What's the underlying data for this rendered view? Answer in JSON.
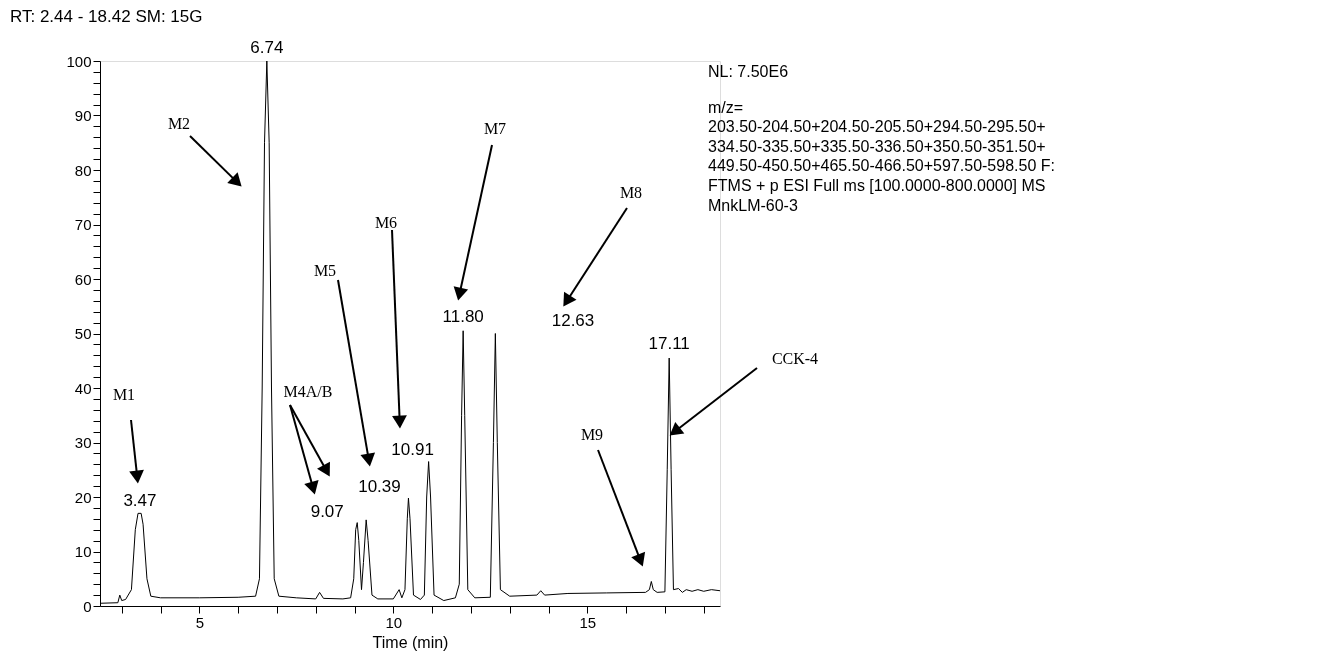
{
  "chart_data": {
    "type": "line",
    "title": "RT: 2.44 - 18.42   SM: 15G",
    "xlabel": "Time (min)",
    "xlim": [
      2.44,
      18.42
    ],
    "ylim": [
      0,
      100
    ],
    "xticks": [
      {
        "value": 3,
        "label": null
      },
      {
        "value": 4,
        "label": null
      },
      5,
      {
        "value": 6,
        "label": null
      },
      {
        "value": 7,
        "label": null
      },
      {
        "value": 8,
        "label": null
      },
      {
        "value": 9,
        "label": null
      },
      10,
      {
        "value": 11,
        "label": null
      },
      {
        "value": 12,
        "label": null
      },
      {
        "value": 13,
        "label": null
      },
      {
        "value": 14,
        "label": null
      },
      15,
      {
        "value": 16,
        "label": null
      },
      {
        "value": 17,
        "label": null
      },
      {
        "value": 18,
        "label": null
      }
    ],
    "yticks": [
      0,
      {
        "value": 2,
        "label": null
      },
      {
        "value": 4,
        "label": null
      },
      {
        "value": 6,
        "label": null
      },
      {
        "value": 8,
        "label": null
      },
      10,
      {
        "value": 12,
        "label": null
      },
      {
        "value": 14,
        "label": null
      },
      {
        "value": 16,
        "label": null
      },
      {
        "value": 18,
        "label": null
      },
      20,
      {
        "value": 22,
        "label": null
      },
      {
        "value": 24,
        "label": null
      },
      {
        "value": 26,
        "label": null
      },
      {
        "value": 28,
        "label": null
      },
      30,
      {
        "value": 32,
        "label": null
      },
      {
        "value": 34,
        "label": null
      },
      {
        "value": 36,
        "label": null
      },
      {
        "value": 38,
        "label": null
      },
      40,
      {
        "value": 42,
        "label": null
      },
      {
        "value": 44,
        "label": null
      },
      {
        "value": 46,
        "label": null
      },
      {
        "value": 48,
        "label": null
      },
      50,
      {
        "value": 52,
        "label": null
      },
      {
        "value": 54,
        "label": null
      },
      {
        "value": 56,
        "label": null
      },
      {
        "value": 58,
        "label": null
      },
      60,
      {
        "value": 62,
        "label": null
      },
      {
        "value": 64,
        "label": null
      },
      {
        "value": 66,
        "label": null
      },
      {
        "value": 68,
        "label": null
      },
      70,
      {
        "value": 72,
        "label": null
      },
      {
        "value": 74,
        "label": null
      },
      {
        "value": 76,
        "label": null
      },
      {
        "value": 78,
        "label": null
      },
      80,
      {
        "value": 82,
        "label": null
      },
      {
        "value": 84,
        "label": null
      },
      {
        "value": 86,
        "label": null
      },
      {
        "value": 88,
        "label": null
      },
      90,
      {
        "value": 92,
        "label": null
      },
      {
        "value": 94,
        "label": null
      },
      {
        "value": 96,
        "label": null
      },
      {
        "value": 98,
        "label": null
      },
      100
    ],
    "grid": false,
    "marker": "none",
    "line_style": "solid",
    "series": [
      {
        "color": "#000000",
        "x": [
          2.44,
          2.9,
          2.95,
          3.0,
          3.1,
          3.25,
          3.35,
          3.42,
          3.5,
          3.55,
          3.65,
          3.75,
          4.0,
          5.0,
          6.0,
          6.45,
          6.55,
          6.62,
          6.68,
          6.74,
          6.8,
          6.86,
          6.93,
          7.05,
          7.5,
          8.0,
          8.1,
          8.2,
          8.7,
          8.9,
          8.98,
          9.03,
          9.07,
          9.11,
          9.18,
          9.23,
          9.3,
          9.35,
          9.45,
          9.6,
          10.0,
          10.15,
          10.22,
          10.3,
          10.36,
          10.39,
          10.43,
          10.52,
          10.7,
          10.8,
          10.86,
          10.91,
          10.96,
          11.05,
          11.3,
          11.6,
          11.7,
          11.76,
          11.8,
          11.84,
          11.92,
          12.1,
          12.5,
          12.58,
          12.63,
          12.68,
          12.76,
          13.0,
          13.7,
          13.8,
          13.9,
          14.5,
          15.5,
          16.5,
          16.6,
          16.65,
          16.7,
          16.8,
          17.0,
          17.06,
          17.11,
          17.16,
          17.22,
          17.35,
          17.45,
          17.55,
          17.7,
          17.85,
          18.0,
          18.2,
          18.42
        ],
        "values": [
          0.5,
          0.6,
          2.0,
          1.0,
          1.2,
          3.0,
          14.0,
          17.0,
          17.0,
          15.0,
          5.0,
          1.8,
          1.5,
          1.5,
          1.6,
          1.8,
          5.0,
          40.0,
          85.0,
          100.0,
          85.0,
          40.0,
          5.0,
          1.8,
          1.5,
          1.3,
          2.5,
          1.4,
          1.3,
          1.5,
          5.0,
          14.0,
          15.3,
          12.0,
          3.0,
          8.0,
          15.8,
          12.0,
          2.0,
          1.3,
          1.3,
          3.0,
          1.5,
          3.0,
          16.0,
          19.8,
          16.0,
          2.0,
          1.2,
          2.0,
          20.0,
          26.5,
          20.0,
          2.0,
          1.0,
          1.5,
          4.0,
          35.0,
          50.5,
          35.0,
          3.0,
          1.5,
          1.6,
          30.0,
          50.0,
          30.0,
          3.0,
          1.8,
          2.0,
          2.8,
          2.0,
          2.3,
          2.4,
          2.5,
          3.0,
          4.5,
          3.0,
          2.5,
          2.6,
          25.0,
          45.5,
          25.0,
          3.0,
          3.2,
          2.5,
          3.0,
          2.7,
          3.0,
          2.7,
          3.0,
          2.8
        ]
      }
    ],
    "annotations": [
      {
        "text": "3.47",
        "x": 3.47,
        "y": 17.0
      },
      {
        "text": "6.74",
        "x": 6.74,
        "y": 100.0
      },
      {
        "text": "9.07",
        "x": 9.07,
        "y": 15.3
      },
      {
        "text": "10.39",
        "x": 10.39,
        "y": 19.8
      },
      {
        "text": "10.91",
        "x": 10.91,
        "y": 26.5
      },
      {
        "text": "11.80",
        "x": 11.8,
        "y": 50.5
      },
      "12.63",
      {
        "text": "17.11",
        "x": 17.11,
        "y": 45.5
      },
      "M1",
      "M2",
      "M4A/B",
      "M5",
      "M6",
      "M7",
      "M8",
      "M9",
      {
        "text": "CCK-4",
        "x": 17.11,
        "y": 31.2
      },
      "NL: 7.50E6",
      "m/z=",
      "203.50-204.50+204.50-205.50+294.50-295.50+",
      "334.50-335.50+335.50-336.50+350.50-351.50+",
      "449.50-450.50+465.50-466.50+597.50-598.50 F:",
      "FTMS + p ESI Full ms [100.0000-800.0000]  MS",
      "MnkLM-60-3"
    ]
  }
}
